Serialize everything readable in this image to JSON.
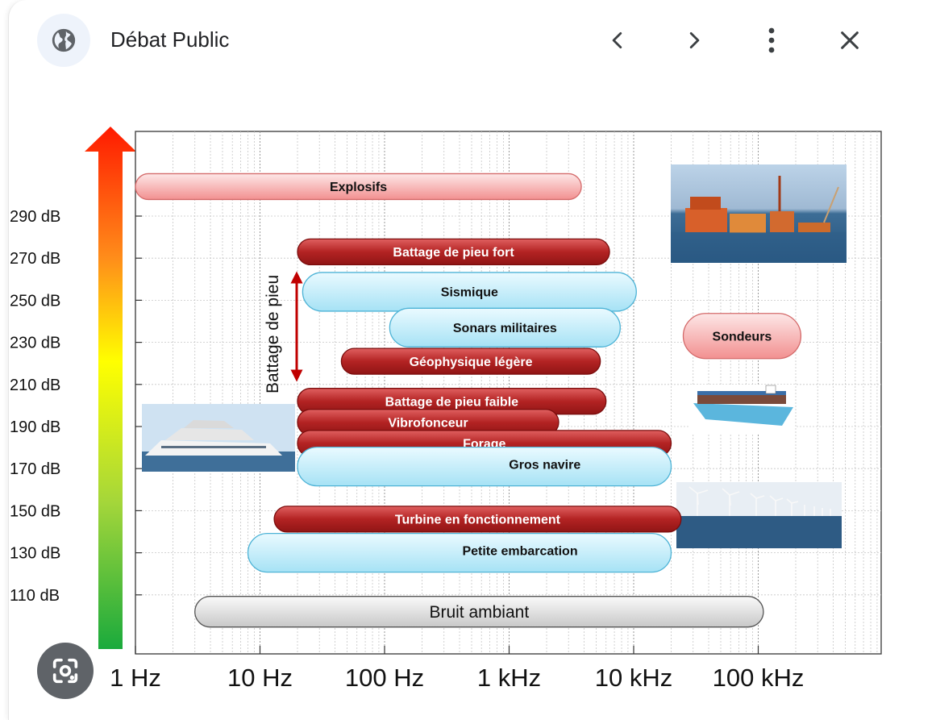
{
  "header": {
    "site_title": "Débat Public",
    "globe_icon": "globe-icon",
    "prev_icon": "chevron-left-icon",
    "next_icon": "chevron-right-icon",
    "more_icon": "more-vert-icon",
    "close_icon": "close-icon"
  },
  "lens_button": {
    "icon": "lens-icon"
  },
  "chart_data": {
    "type": "bar",
    "x_axis": {
      "scale": "log",
      "unit": "Hz",
      "ticks": [
        "1 Hz",
        "10 Hz",
        "100 Hz",
        "1 kHz",
        "10 kHz",
        "100 kHz"
      ]
    },
    "y_axis": {
      "ticks": [
        "290 dB",
        "270 dB",
        "250 dB",
        "230 dB",
        "210 dB",
        "190 dB",
        "170 dB",
        "150 dB",
        "130 dB",
        "110 dB"
      ]
    },
    "grid": true,
    "bars": [
      {
        "label": "Explosifs",
        "x_start": 1.0,
        "x_end": 3800,
        "level": 304,
        "style": "pink"
      },
      {
        "label": "Battage de pieu fort",
        "x_start": 20,
        "x_end": 6400,
        "level": 273,
        "style": "red"
      },
      {
        "label": "Sismique",
        "x_start": 22,
        "x_end": 10500,
        "level": 254,
        "style": "blue"
      },
      {
        "label": "Sonars militaires",
        "x_start": 110,
        "x_end": 7800,
        "level": 237,
        "style": "blue"
      },
      {
        "label": "Sondeurs",
        "x_start": 25000,
        "x_end": 220000,
        "level": 233,
        "style": "pink"
      },
      {
        "label": "Géophysique légère",
        "x_start": 45,
        "x_end": 5400,
        "level": 221,
        "style": "red"
      },
      {
        "label": "Battage de pieu faible",
        "x_start": 20,
        "x_end": 6000,
        "level": 202,
        "style": "red"
      },
      {
        "label": "Vibrofonceur",
        "x_start": 20,
        "x_end": 2500,
        "level": 192,
        "style": "red"
      },
      {
        "label": "Forage",
        "x_start": 20,
        "x_end": 20000,
        "level": 182,
        "style": "red"
      },
      {
        "label": "Gros navire",
        "x_start": 20,
        "x_end": 20000,
        "level": 171,
        "style": "blue"
      },
      {
        "label": "Turbine en fonctionnement",
        "x_start": 13,
        "x_end": 24000,
        "level": 146,
        "style": "red"
      },
      {
        "label": "Petite embarcation",
        "x_start": 8,
        "x_end": 20000,
        "level": 130,
        "style": "blue"
      },
      {
        "label": "Bruit ambiant",
        "x_start": 3,
        "x_end": 110000,
        "level": 102,
        "style": "gray"
      }
    ],
    "annotation": {
      "text": "Battage de pieu",
      "x": 20,
      "y_from": 213,
      "y_to": 260
    }
  }
}
